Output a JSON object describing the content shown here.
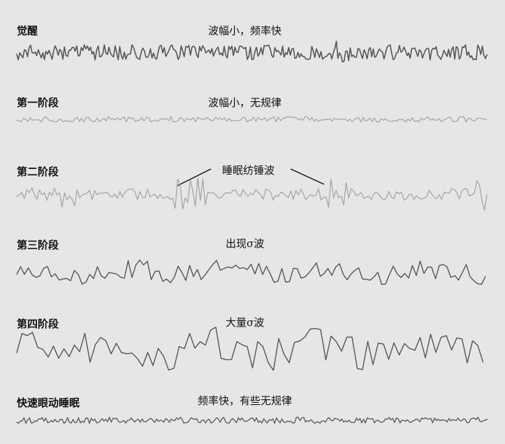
{
  "stages": [
    {
      "label": "觉醒",
      "desc": "波幅小，频率快",
      "color": "#555555"
    },
    {
      "label": "第一阶段",
      "desc": "波幅小，无规律",
      "color": "#a6a6a6"
    },
    {
      "label": "第二阶段",
      "desc": "睡眠纺锤波",
      "color": "#a6a6a6"
    },
    {
      "label": "第三阶段",
      "desc": "出现σ波",
      "color": "#555555"
    },
    {
      "label": "第四阶段",
      "desc": "大量σ波",
      "color": "#555555"
    },
    {
      "label": "快速眼动睡眠",
      "desc": "频率快，有些无规律",
      "color": "#555555"
    }
  ]
}
